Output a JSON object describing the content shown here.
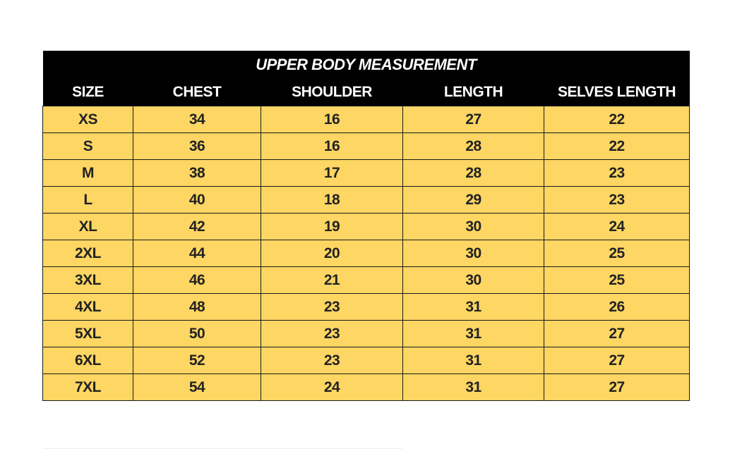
{
  "title": "UPPER BODY MEASUREMENT",
  "headers": [
    "SIZE",
    "CHEST",
    "SHOULDER",
    "LENGTH",
    "SELVES LENGTH"
  ],
  "rows": [
    [
      "XS",
      "34",
      "16",
      "27",
      "22"
    ],
    [
      "S",
      "36",
      "16",
      "28",
      "22"
    ],
    [
      "M",
      "38",
      "17",
      "28",
      "23"
    ],
    [
      "L",
      "40",
      "18",
      "29",
      "23"
    ],
    [
      "XL",
      "42",
      "19",
      "30",
      "24"
    ],
    [
      "2XL",
      "44",
      "20",
      "30",
      "25"
    ],
    [
      "3XL",
      "46",
      "21",
      "30",
      "25"
    ],
    [
      "4XL",
      "48",
      "23",
      "31",
      "26"
    ],
    [
      "5XL",
      "50",
      "23",
      "31",
      "27"
    ],
    [
      "6XL",
      "52",
      "23",
      "31",
      "27"
    ],
    [
      "7XL",
      "54",
      "24",
      "31",
      "27"
    ]
  ],
  "colors": {
    "header_bg": "#000000",
    "cell_bg": "#fdd663"
  }
}
